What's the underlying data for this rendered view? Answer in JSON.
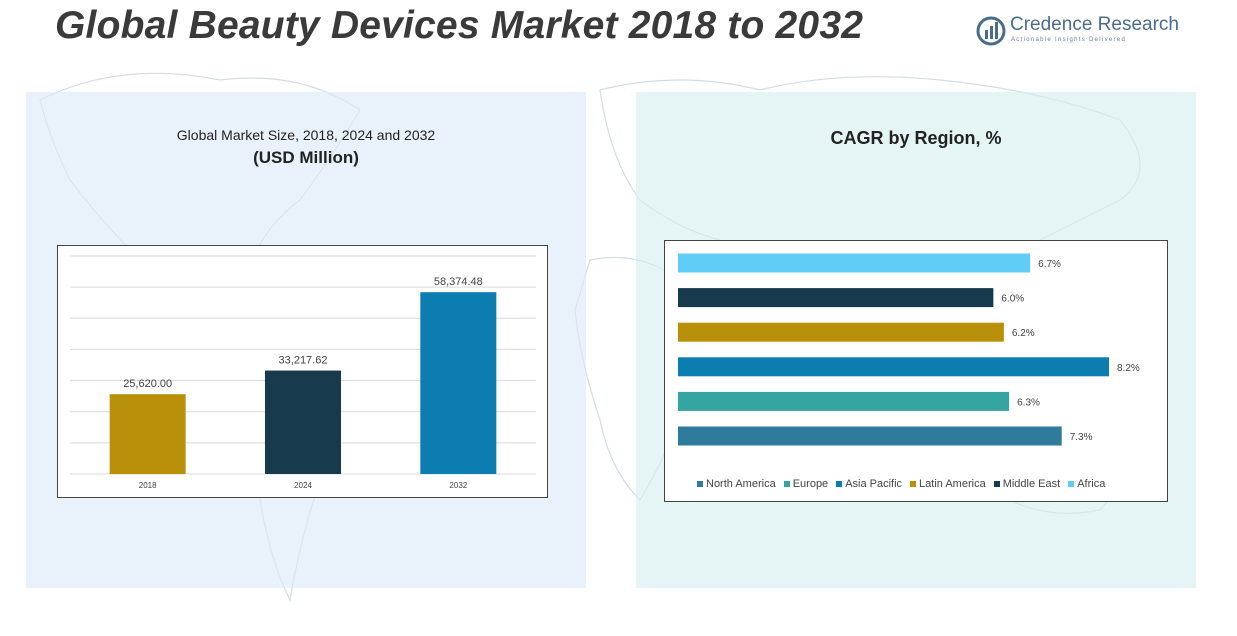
{
  "page": {
    "title": "Global Beauty Devices Market 2018 to 2032"
  },
  "logo": {
    "name": "Credence Research",
    "tagline": "Actionable Insights Delivered"
  },
  "left_panel": {
    "subtitle": "Global Market Size, 2018, 2024 and 2032",
    "unit": "(USD Million)"
  },
  "right_panel": {
    "subtitle": "CAGR by Region, %"
  },
  "colors": {
    "title": "#3a3a3a",
    "left_panel_bg": "#dbeaf6",
    "right_panel_bg": "#d4eeef"
  },
  "chart_data": [
    {
      "type": "bar",
      "categories": [
        "2018",
        "2024",
        "2032"
      ],
      "values": [
        25620.0,
        33217.62,
        58374.48
      ],
      "labels": [
        "25,620.00",
        "33,217.62",
        "58,374.48"
      ],
      "colors": [
        "#b8900a",
        "#173b4c",
        "#0b7db1"
      ],
      "ylim": [
        0,
        70000
      ],
      "grid": true
    },
    {
      "type": "bar",
      "orientation": "horizontal",
      "categories": [
        "Africa",
        "Middle East",
        "Latin America",
        "Asia Pacific",
        "Europe",
        "North America"
      ],
      "values": [
        6.7,
        6.0,
        6.2,
        8.2,
        6.3,
        7.3
      ],
      "labels": [
        "6.7%",
        "6.0%",
        "6.2%",
        "8.2%",
        "6.3%",
        "7.3%"
      ],
      "colors": [
        "#5fcdf5",
        "#173b4c",
        "#b8900a",
        "#0b7db1",
        "#33a4a0",
        "#2e7b9c"
      ],
      "xlim": [
        0,
        8.2
      ],
      "legend": {
        "position": "bottom",
        "items": [
          {
            "name": "North America",
            "color": "#2e7b9c"
          },
          {
            "name": "Europe",
            "color": "#33a4a0"
          },
          {
            "name": "Asia Pacific",
            "color": "#0b7db1"
          },
          {
            "name": "Latin America",
            "color": "#b8900a"
          },
          {
            "name": "Middle East",
            "color": "#173b4c"
          },
          {
            "name": "Africa",
            "color": "#5fcdf5"
          }
        ]
      }
    }
  ]
}
